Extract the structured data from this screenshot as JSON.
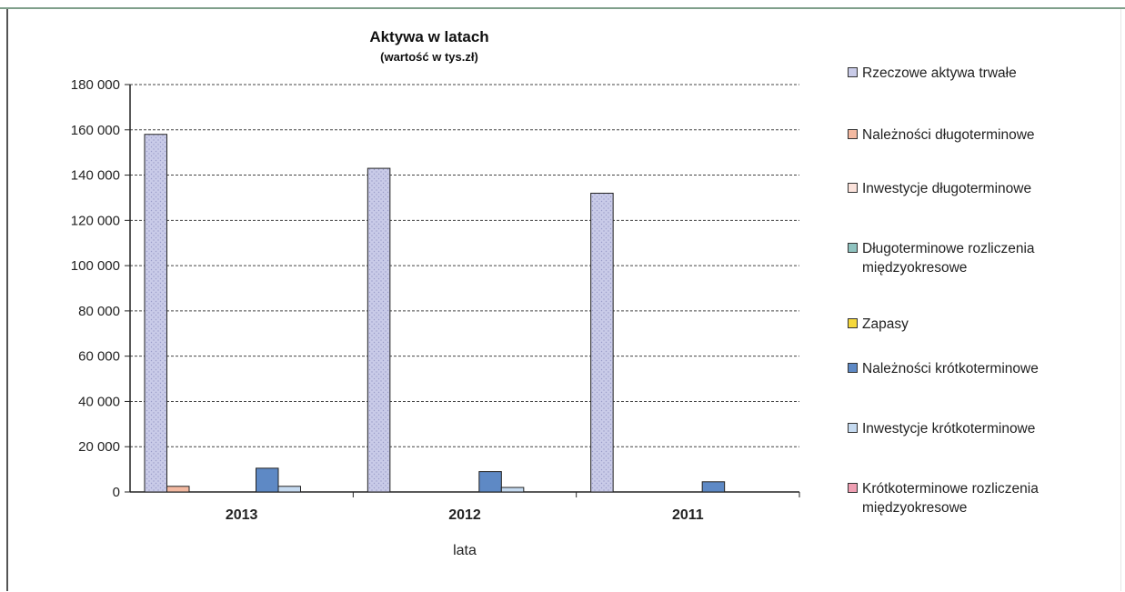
{
  "chart_data": {
    "type": "bar",
    "title": "Aktywa w latach",
    "subtitle": "(wartość w tys.zł)",
    "xlabel": "lata",
    "ylabel": "",
    "categories": [
      "2013",
      "2012",
      "2011"
    ],
    "ylim": [
      0,
      180000
    ],
    "yticks": [
      0,
      20000,
      40000,
      60000,
      80000,
      100000,
      120000,
      140000,
      160000,
      180000
    ],
    "ytick_labels": [
      "0",
      "20 000",
      "40 000",
      "60 000",
      "80 000",
      "100 000",
      "120 000",
      "140 000",
      "160 000",
      "180 000"
    ],
    "grid": true,
    "legend_position": "right",
    "series": [
      {
        "name": "Rzeczowe aktywa trwałe",
        "color": "#c9cbe8",
        "values": [
          158000,
          143000,
          132000
        ]
      },
      {
        "name": "Należności długoterminowe",
        "color": "#f3b9a1",
        "values": [
          2500,
          0,
          0
        ]
      },
      {
        "name": "Inwestycje długoterminowe",
        "color": "#fbe2db",
        "values": [
          0,
          0,
          0
        ]
      },
      {
        "name": "Długoterminowe rozliczenia\nmiędzyokresowe",
        "color": "#8fc3c0",
        "values": [
          0,
          0,
          0
        ]
      },
      {
        "name": "Zapasy",
        "color": "#f5d83c",
        "values": [
          0,
          0,
          0
        ]
      },
      {
        "name": "Należności krótkoterminowe",
        "color": "#5e89c5",
        "values": [
          10500,
          9000,
          4500
        ]
      },
      {
        "name": "Inwestycje krótkoterminowe",
        "color": "#c5daf0",
        "values": [
          2500,
          2000,
          0
        ]
      },
      {
        "name": "Krótkoterminowe rozliczenia\nmiędzyokresowe",
        "color": "#ef9fb3",
        "values": [
          0,
          0,
          0
        ]
      }
    ]
  }
}
